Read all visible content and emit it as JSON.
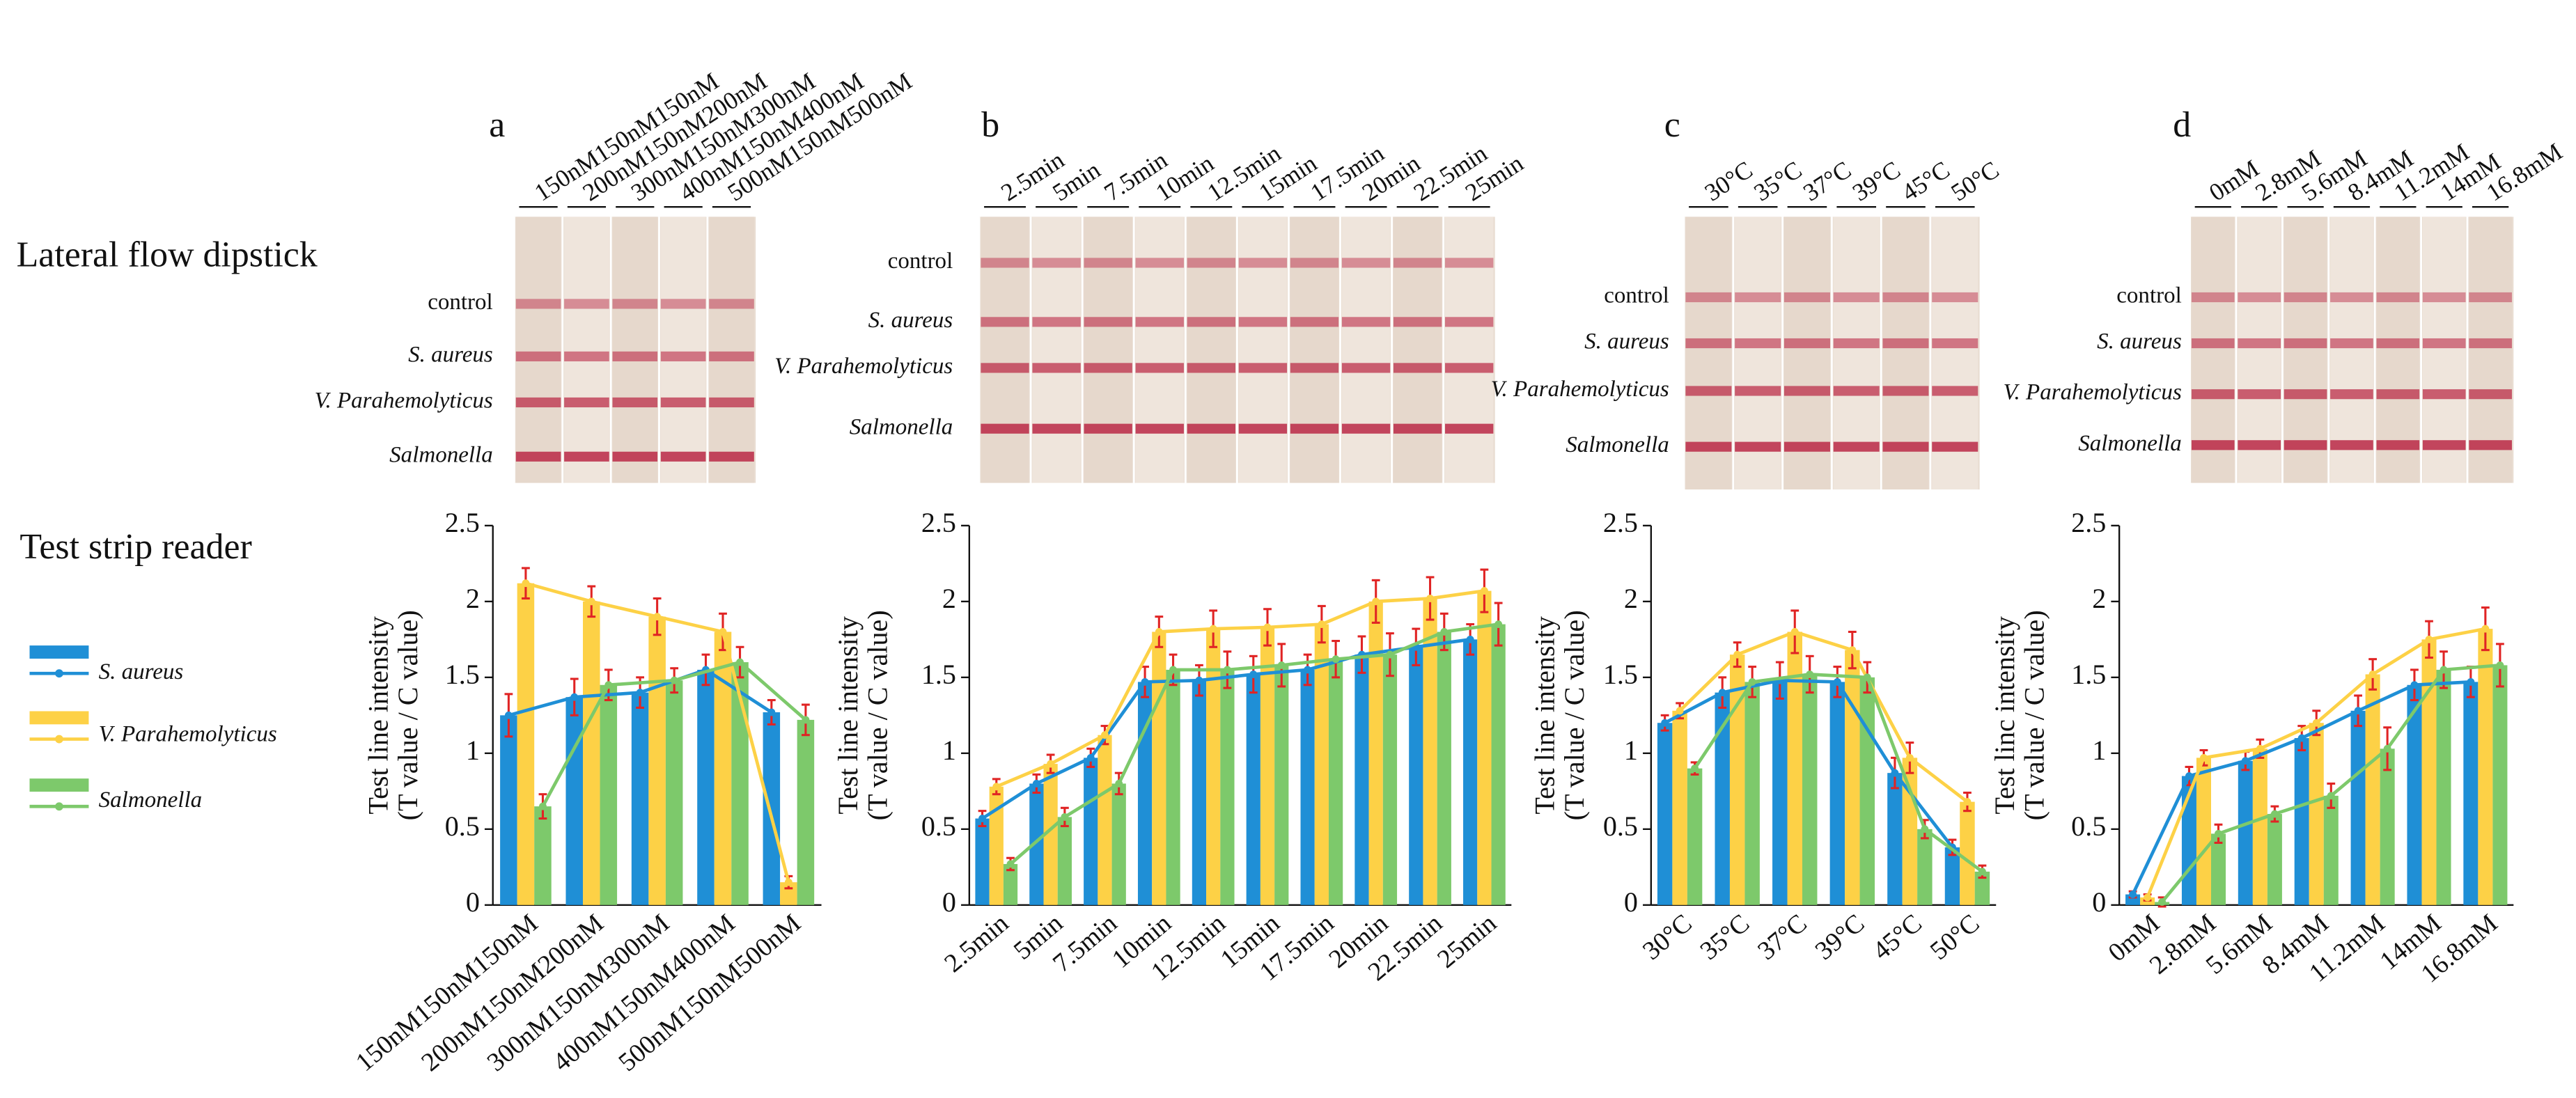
{
  "row_labels": [
    "Lateral flow dipstick",
    "Test strip reader"
  ],
  "strip_labels": [
    "control",
    "S. aureus",
    "V. Parahemolyticus",
    "Salmonella"
  ],
  "error_color": "#e02424",
  "chart_data": [
    {
      "type": "bar",
      "panel": "a",
      "ylabel": [
        "Test line intensity",
        "(T value / C value)"
      ],
      "categories": [
        "150nM150nM150nM",
        "200nM150nM200nM",
        "300nM150nM300nM",
        "400nM150nM400nM",
        "500nM150nM500nM"
      ],
      "ylim": [
        0,
        2.5
      ],
      "yticks": [
        0,
        0.5,
        1.0,
        {
          "value": 1.5,
          "label": "1.5"
        },
        2.0,
        2.5
      ],
      "series": [
        {
          "name": "S. aureus",
          "color": "#1f8fd6",
          "values": [
            1.25,
            1.37,
            1.4,
            1.55,
            1.27
          ],
          "errors": [
            0.14,
            0.12,
            0.1,
            0.1,
            0.08
          ]
        },
        {
          "name": "V. Parahemolyticus",
          "color": "#fdd146",
          "values": [
            2.12,
            2.0,
            1.9,
            1.8,
            0.15
          ],
          "errors": [
            0.1,
            0.1,
            0.12,
            0.12,
            0.04
          ]
        },
        {
          "name": "Salmonella",
          "color": "#7dc96b",
          "values": [
            0.65,
            1.45,
            1.48,
            1.6,
            1.22
          ],
          "errors": [
            0.08,
            0.1,
            0.08,
            0.1,
            0.1
          ]
        }
      ]
    },
    {
      "type": "bar",
      "panel": "b",
      "ylabel": [
        "Test line intensity",
        "(T value / C value)"
      ],
      "categories": [
        "2.5min",
        "5min",
        "7.5min",
        "10min",
        "12.5min",
        "15min",
        "17.5min",
        "20min",
        "22.5min",
        "25min"
      ],
      "ylim": [
        0,
        2.5
      ],
      "yticks": [
        0,
        0.5,
        1.0,
        1.5,
        2.0,
        2.5
      ],
      "series": [
        {
          "name": "S. aureus",
          "color": "#1f8fd6",
          "values": [
            0.57,
            0.8,
            0.97,
            1.47,
            1.48,
            1.52,
            1.55,
            1.65,
            1.7,
            1.75
          ],
          "errors": [
            0.05,
            0.06,
            0.06,
            0.1,
            0.1,
            0.12,
            0.1,
            0.12,
            0.12,
            0.1
          ]
        },
        {
          "name": "V. Parahemolyticus",
          "color": "#fdd146",
          "values": [
            0.78,
            0.93,
            1.12,
            1.8,
            1.82,
            1.83,
            1.85,
            2.0,
            2.02,
            2.07
          ],
          "errors": [
            0.05,
            0.06,
            0.06,
            0.1,
            0.12,
            0.12,
            0.12,
            0.14,
            0.14,
            0.14
          ]
        },
        {
          "name": "Salmonella",
          "color": "#7dc96b",
          "values": [
            0.27,
            0.58,
            0.8,
            1.55,
            1.55,
            1.58,
            1.62,
            1.65,
            1.8,
            1.85
          ],
          "errors": [
            0.04,
            0.06,
            0.07,
            0.1,
            0.12,
            0.14,
            0.12,
            0.14,
            0.12,
            0.14
          ]
        }
      ]
    },
    {
      "type": "bar",
      "panel": "c",
      "ylabel": [
        "Test line intensity",
        "(T value / C value)"
      ],
      "categories": [
        "30°C",
        "35°C",
        "37°C",
        "39°C",
        "45°C",
        "50°C"
      ],
      "ylim": [
        0,
        2.5
      ],
      "yticks": [
        0,
        0.5,
        1.0,
        1.5,
        2.0,
        2.5
      ],
      "series": [
        {
          "name": "S. aureus",
          "color": "#1f8fd6",
          "values": [
            1.2,
            1.4,
            1.48,
            1.47,
            0.87,
            0.38
          ],
          "errors": [
            0.05,
            0.1,
            0.12,
            0.1,
            0.1,
            0.05
          ]
        },
        {
          "name": "V. Parahemolyticus",
          "color": "#fdd146",
          "values": [
            1.28,
            1.65,
            1.8,
            1.68,
            0.97,
            0.68
          ],
          "errors": [
            0.05,
            0.08,
            0.14,
            0.12,
            0.1,
            0.06
          ]
        },
        {
          "name": "Salmonella",
          "color": "#7dc96b",
          "values": [
            0.9,
            1.47,
            1.52,
            1.5,
            0.5,
            0.22
          ],
          "errors": [
            0.04,
            0.1,
            0.12,
            0.1,
            0.06,
            0.04
          ]
        }
      ]
    },
    {
      "type": "bar",
      "panel": "d",
      "ylabel": [
        "Test linc intensity",
        "(T value / C value)"
      ],
      "categories": [
        "0mM",
        "2.8mM",
        "5.6mM",
        "8.4mM",
        "11.2mM",
        "14mM",
        "16.8mM"
      ],
      "ylim": [
        0,
        2.5
      ],
      "yticks": [
        0,
        0.5,
        1.0,
        1.5,
        2.0,
        2.5
      ],
      "series": [
        {
          "name": "S. aureus",
          "color": "#1f8fd6",
          "values": [
            0.07,
            0.85,
            0.95,
            1.1,
            1.28,
            1.45,
            1.47
          ],
          "errors": [
            0.02,
            0.06,
            0.06,
            0.08,
            0.1,
            0.1,
            0.1
          ]
        },
        {
          "name": "V. Parahemolyticus",
          "color": "#fdd146",
          "values": [
            0.05,
            0.97,
            1.03,
            1.2,
            1.52,
            1.75,
            1.82
          ],
          "errors": [
            0.02,
            0.05,
            0.06,
            0.08,
            0.1,
            0.12,
            0.14
          ]
        },
        {
          "name": "Salmonella",
          "color": "#7dc96b",
          "values": [
            0.02,
            0.47,
            0.6,
            0.72,
            1.03,
            1.55,
            1.58
          ],
          "errors": [
            0.03,
            0.06,
            0.05,
            0.08,
            0.14,
            0.12,
            0.14
          ]
        }
      ]
    }
  ]
}
